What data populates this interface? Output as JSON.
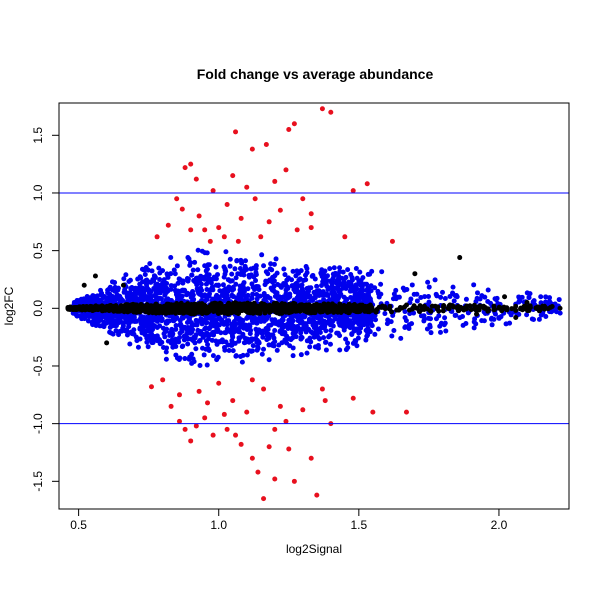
{
  "chart_data": {
    "type": "scatter",
    "title": "Fold change vs average abundance",
    "xlabel": "log2Signal",
    "ylabel": "log2FC",
    "xlim": [
      0.43,
      2.25
    ],
    "ylim": [
      -1.74,
      1.78
    ],
    "x_ticks": [
      {
        "value": 0.5,
        "label": "0.5"
      },
      {
        "value": 1.0,
        "label": "1.0"
      },
      {
        "value": 1.5,
        "label": "1.5"
      },
      {
        "value": 2.0,
        "label": "2.0"
      }
    ],
    "y_ticks": [
      {
        "value": -1.5,
        "label": "-1.5"
      },
      {
        "value": -1.0,
        "label": "-1.0"
      },
      {
        "value": -0.5,
        "label": "-0.5"
      },
      {
        "value": 0.0,
        "label": "0.0"
      },
      {
        "value": 0.5,
        "label": "0.5"
      },
      {
        "value": 1.0,
        "label": "1.0"
      },
      {
        "value": 1.5,
        "label": "1.5"
      }
    ],
    "reference_lines": [
      {
        "orientation": "horizontal",
        "y": 1.0,
        "color": "#0000ff"
      },
      {
        "orientation": "horizontal",
        "y": -1.0,
        "color": "#0000ff"
      }
    ],
    "grid": false,
    "legend": "none",
    "colors": {
      "significant_large_fc": "#e8101e",
      "significant": "#0000ee",
      "not_significant": "#000000"
    },
    "series": [
      {
        "color_key": "significant_large_fc",
        "points": [
          [
            0.78,
            0.62
          ],
          [
            0.82,
            0.72
          ],
          [
            0.85,
            0.95
          ],
          [
            0.88,
            1.22
          ],
          [
            0.9,
            1.25
          ],
          [
            0.93,
            0.8
          ],
          [
            0.95,
            0.68
          ],
          [
            0.98,
            1.02
          ],
          [
            1.0,
            0.7
          ],
          [
            1.03,
            0.9
          ],
          [
            1.05,
            1.15
          ],
          [
            1.07,
            0.58
          ],
          [
            1.1,
            1.05
          ],
          [
            1.12,
            1.38
          ],
          [
            1.15,
            0.62
          ],
          [
            1.17,
            1.42
          ],
          [
            1.2,
            1.1
          ],
          [
            1.22,
            0.85
          ],
          [
            1.25,
            1.55
          ],
          [
            1.27,
            1.6
          ],
          [
            1.3,
            0.95
          ],
          [
            1.33,
            0.7
          ],
          [
            1.37,
            1.73
          ],
          [
            1.4,
            1.7
          ],
          [
            1.45,
            0.62
          ],
          [
            1.48,
            1.02
          ],
          [
            1.53,
            1.08
          ],
          [
            1.62,
            0.58
          ],
          [
            1.06,
            1.53
          ],
          [
            1.18,
            0.75
          ],
          [
            0.87,
            0.86
          ],
          [
            0.92,
            1.12
          ],
          [
            1.02,
            0.62
          ],
          [
            1.13,
            0.95
          ],
          [
            1.24,
            1.2
          ],
          [
            1.33,
            0.82
          ],
          [
            0.97,
            0.58
          ],
          [
            1.08,
            0.78
          ],
          [
            1.28,
            0.68
          ],
          [
            0.9,
            0.68
          ],
          [
            0.8,
            -0.62
          ],
          [
            0.83,
            -0.85
          ],
          [
            0.86,
            -0.98
          ],
          [
            0.88,
            -1.05
          ],
          [
            0.9,
            -1.15
          ],
          [
            0.93,
            -0.72
          ],
          [
            0.95,
            -0.95
          ],
          [
            0.98,
            -1.1
          ],
          [
            1.0,
            -0.65
          ],
          [
            1.03,
            -1.05
          ],
          [
            1.05,
            -0.8
          ],
          [
            1.08,
            -1.18
          ],
          [
            1.1,
            -0.9
          ],
          [
            1.12,
            -1.3
          ],
          [
            1.14,
            -1.42
          ],
          [
            1.16,
            -0.7
          ],
          [
            1.18,
            -1.2
          ],
          [
            1.2,
            -1.05
          ],
          [
            1.22,
            -0.85
          ],
          [
            1.25,
            -1.22
          ],
          [
            1.27,
            -1.5
          ],
          [
            1.3,
            -0.88
          ],
          [
            1.33,
            -1.3
          ],
          [
            1.37,
            -0.7
          ],
          [
            1.4,
            -1.0
          ],
          [
            1.48,
            -0.78
          ],
          [
            1.55,
            -0.9
          ],
          [
            1.67,
            -0.9
          ],
          [
            1.16,
            -1.65
          ],
          [
            1.2,
            -1.48
          ],
          [
            1.35,
            -1.62
          ],
          [
            0.76,
            -0.68
          ],
          [
            0.86,
            -0.75
          ],
          [
            0.96,
            -0.82
          ],
          [
            1.02,
            -0.92
          ],
          [
            1.12,
            -0.62
          ],
          [
            1.24,
            -0.98
          ],
          [
            1.38,
            -0.8
          ],
          [
            0.92,
            -1.02
          ],
          [
            1.06,
            -1.1
          ]
        ]
      },
      {
        "color_key": "significant",
        "band": {
          "x_start": 0.48,
          "x_end": 2.22,
          "x_peak": 1.0,
          "y_peak": 0.52,
          "y_end": 0.1,
          "count": 2600
        }
      },
      {
        "color_key": "not_significant",
        "band": {
          "x_start": 0.46,
          "x_end": 2.22,
          "x_peak": 1.0,
          "y_peak": 0.05,
          "y_end": 0.02,
          "count": 1300
        },
        "outliers": [
          [
            0.52,
            0.2
          ],
          [
            0.56,
            0.28
          ],
          [
            0.6,
            -0.3
          ],
          [
            0.66,
            0.2
          ],
          [
            1.86,
            0.44
          ],
          [
            1.92,
            -0.05
          ],
          [
            2.02,
            0.1
          ],
          [
            2.06,
            -0.08
          ],
          [
            2.1,
            0.05
          ],
          [
            1.7,
            0.3
          ]
        ]
      }
    ]
  }
}
